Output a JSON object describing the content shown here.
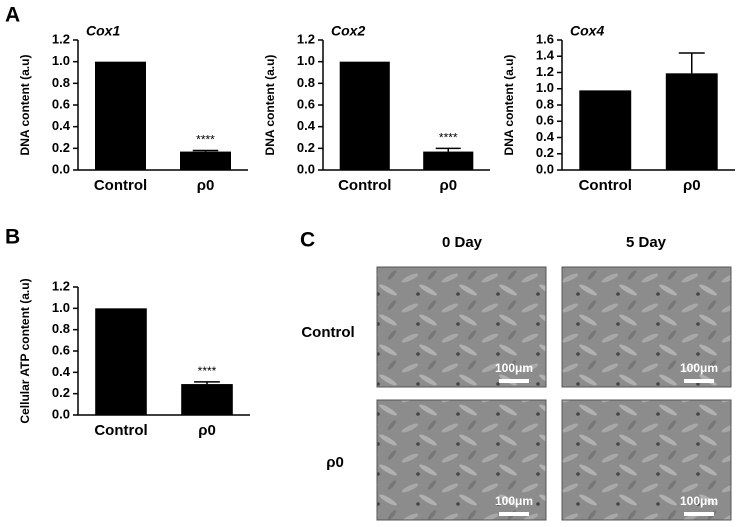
{
  "panel_labels": [
    "A",
    "B",
    "C"
  ],
  "chart_data": [
    {
      "type": "bar",
      "title": "Cox1",
      "y_label": "DNA content (a.u)",
      "categories": [
        "Control",
        "ρ0"
      ],
      "values": [
        1.0,
        0.17
      ],
      "errors": [
        null,
        0.01
      ],
      "annotation": "****",
      "color": "#000000",
      "ylim": [
        0,
        1.2
      ],
      "yticks": [
        {
          "value": 0,
          "label": "0.0"
        },
        0.2,
        0.4,
        0.6,
        0.8,
        {
          "value": 1,
          "label": "1.0"
        },
        1.2
      ]
    },
    {
      "type": "bar",
      "title": "Cox2",
      "y_label": "DNA content (a.u)",
      "categories": [
        "Control",
        "ρ0"
      ],
      "values": [
        1.0,
        0.17
      ],
      "errors": [
        null,
        0.03
      ],
      "annotation": "****",
      "color": "#000000",
      "ylim": [
        0,
        1.2
      ],
      "yticks": [
        {
          "value": 0,
          "label": "0.0"
        },
        0.2,
        0.4,
        0.6,
        0.8,
        {
          "value": 1,
          "label": "1.0"
        },
        1.2
      ]
    },
    {
      "type": "bar",
      "title": "Cox4",
      "y_label": "DNA content (a.u)",
      "categories": [
        "Control",
        "ρ0"
      ],
      "values": [
        0.98,
        1.19
      ],
      "errors": [
        null,
        0.25
      ],
      "color": "#000000",
      "ylim": [
        0,
        1.6
      ],
      "yticks": [
        {
          "value": 0,
          "label": "0.0"
        },
        0.2,
        0.4,
        0.6,
        0.8,
        {
          "value": 1,
          "label": "1.0"
        },
        1.2,
        1.4,
        1.6
      ]
    },
    {
      "type": "bar",
      "y_label": "Cellular ATP content (a.u)",
      "categories": [
        "Control",
        "ρ0"
      ],
      "values": [
        1.0,
        0.29
      ],
      "errors": [
        null,
        0.02
      ],
      "annotation": "****",
      "color": "#000000",
      "ylim": [
        0,
        1.2
      ],
      "yticks": [
        {
          "value": 0,
          "label": "0.0"
        },
        0.2,
        0.4,
        0.6,
        0.8,
        {
          "value": 1,
          "label": "1.0"
        },
        1.2
      ]
    }
  ],
  "panel_c": {
    "columns": [
      "0 Day",
      "5 Day"
    ],
    "rows": [
      "Control",
      "ρ0"
    ],
    "scale_bar": "100μm"
  }
}
